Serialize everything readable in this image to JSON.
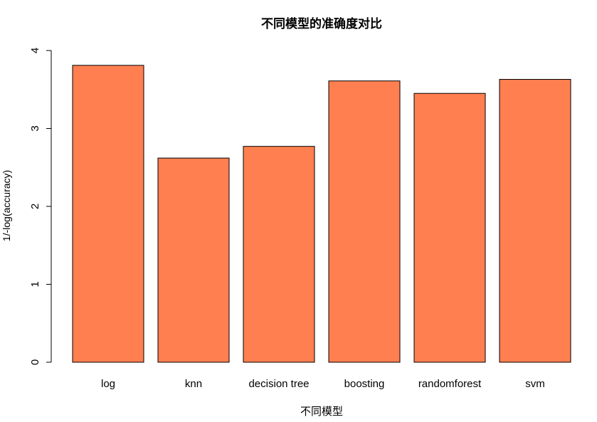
{
  "chart_data": {
    "type": "bar",
    "title": "不同模型的准确度对比",
    "xlabel": "不同模型",
    "ylabel": "1/-log(accuracy)",
    "categories": [
      "log",
      "knn",
      "decision tree",
      "boosting",
      "randomforest",
      "svm"
    ],
    "values": [
      3.81,
      2.62,
      2.77,
      3.61,
      3.45,
      3.63
    ],
    "ylim": [
      0,
      4
    ],
    "yticks": [
      "0",
      "1",
      "2",
      "3",
      "4"
    ],
    "grid": false,
    "legend": "none",
    "colors": {
      "bar_fill": "#FF7F50",
      "bar_stroke": "#000000",
      "axis": "#000000"
    }
  }
}
